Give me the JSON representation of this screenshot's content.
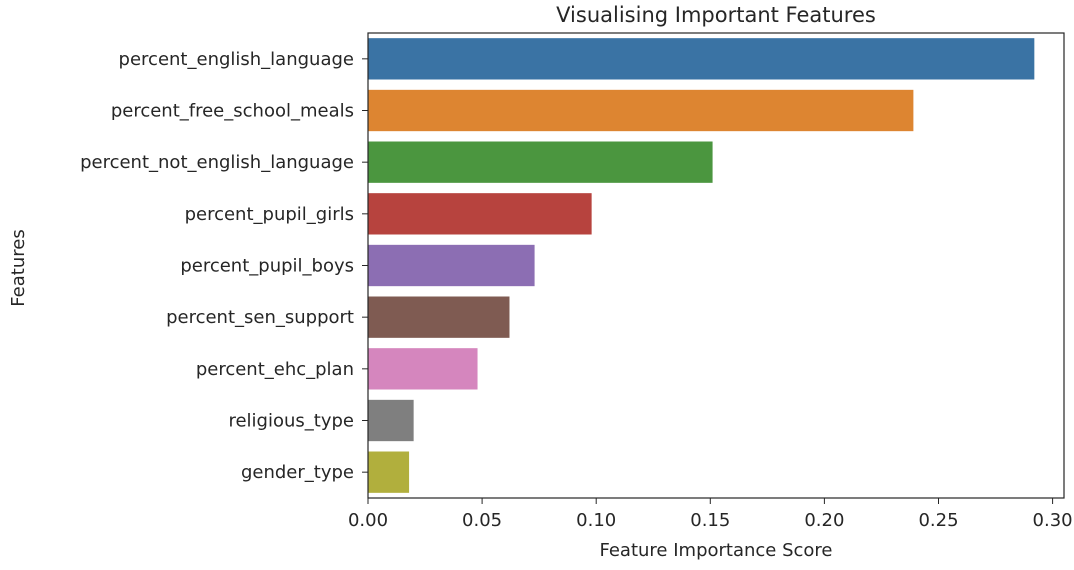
{
  "chart_data": {
    "type": "bar",
    "orientation": "horizontal",
    "title": "Visualising Important Features",
    "xlabel": "Feature Importance Score",
    "ylabel": "Features",
    "xlim": [
      0.0,
      0.305
    ],
    "xticks": [
      "0.00",
      "0.05",
      "0.10",
      "0.15",
      "0.20",
      "0.25",
      "0.30"
    ],
    "xtick_values": [
      0.0,
      0.05,
      0.1,
      0.15,
      0.2,
      0.25,
      0.3
    ],
    "grid": false,
    "categories": [
      "percent_english_language",
      "percent_free_school_meals",
      "percent_not_english_language",
      "percent_pupil_girls",
      "percent_pupil_boys",
      "percent_sen_support",
      "percent_ehc_plan",
      "religious_type",
      "gender_type"
    ],
    "values": [
      0.292,
      0.239,
      0.151,
      0.098,
      0.073,
      0.062,
      0.048,
      0.02,
      0.018
    ],
    "colors": [
      "#3a73a4",
      "#dd8531",
      "#4b963f",
      "#b7433e",
      "#8c6eb3",
      "#7f5b52",
      "#d586be",
      "#7f7f7f",
      "#b1af3d"
    ]
  }
}
